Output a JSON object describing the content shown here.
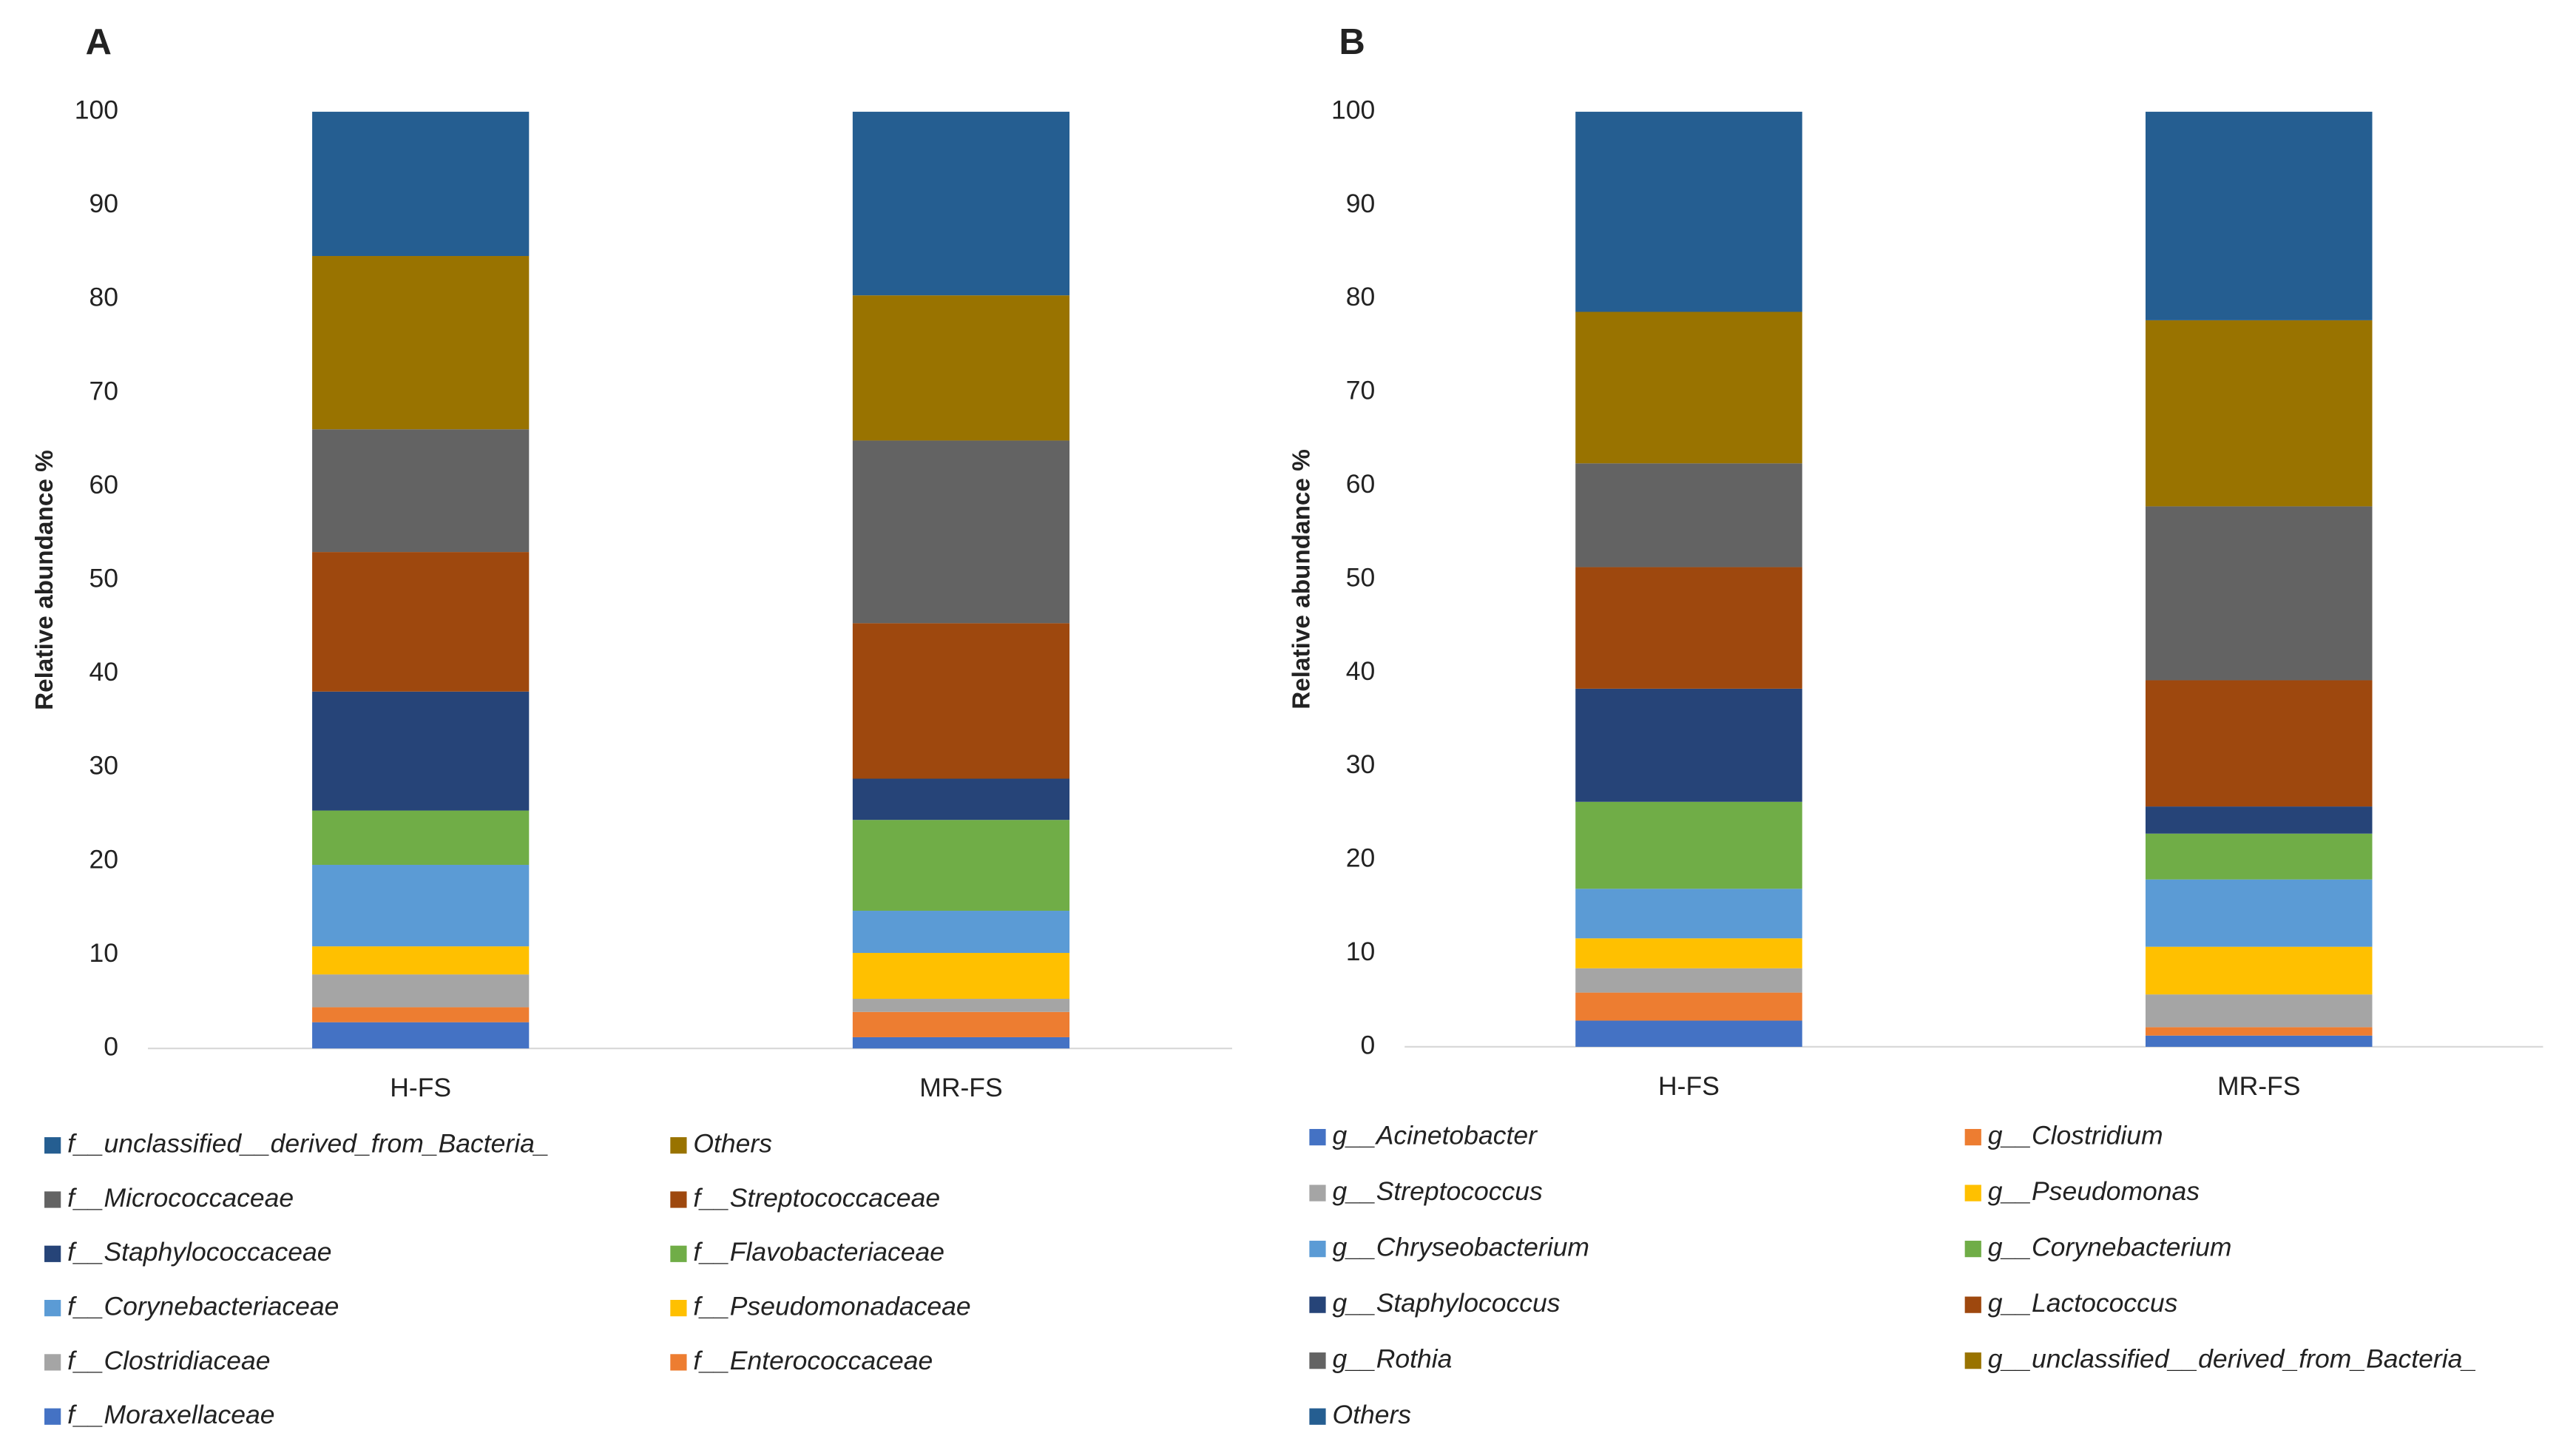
{
  "chart_data": [
    {
      "type": "stacked_bar",
      "title": "A",
      "y_label": "Relative abundance %",
      "categories": [
        "H-FS",
        "MR-FS"
      ],
      "ylim": [
        0,
        100
      ],
      "yticks": [
        0,
        10,
        20,
        30,
        40,
        50,
        60,
        70,
        80,
        90,
        100
      ],
      "legend_reversed": true,
      "series": [
        {
          "name": "f__Moraxellaceae",
          "color": "#4472c4",
          "values": [
            2.8,
            1.2
          ]
        },
        {
          "name": "f__Enterococcaceae",
          "color": "#ed7d31",
          "values": [
            1.6,
            2.7
          ]
        },
        {
          "name": "f__Clostridiaceae",
          "color": "#a5a5a5",
          "values": [
            3.5,
            1.4
          ]
        },
        {
          "name": "f__Pseudomonadaceae",
          "color": "#ffc000",
          "values": [
            3.0,
            4.9
          ]
        },
        {
          "name": "f__Corynebacteriaceae",
          "color": "#5b9bd5",
          "values": [
            8.7,
            4.5
          ]
        },
        {
          "name": "f__Flavobacteriaceae",
          "color": "#70ad47",
          "values": [
            5.8,
            9.7
          ]
        },
        {
          "name": "f__Staphylococcaceae",
          "color": "#264478",
          "values": [
            12.7,
            4.4
          ]
        },
        {
          "name": "f__Streptococcaceae",
          "color": "#9e480e",
          "values": [
            14.9,
            16.6
          ]
        },
        {
          "name": "f__Micrococcaceae",
          "color": "#636363",
          "values": [
            13.1,
            19.5
          ]
        },
        {
          "name": "Others",
          "color": "#997300",
          "values": [
            18.5,
            15.5
          ]
        },
        {
          "name": "f__unclassified__derived_from_Bacteria_",
          "color": "#255e91",
          "values": [
            15.4,
            19.6
          ]
        }
      ]
    },
    {
      "type": "stacked_bar",
      "title": "B",
      "y_label": "Relative abundance %",
      "categories": [
        "H-FS",
        "MR-FS"
      ],
      "ylim": [
        0,
        100
      ],
      "yticks": [
        0,
        10,
        20,
        30,
        40,
        50,
        60,
        70,
        80,
        90,
        100
      ],
      "legend_reversed": false,
      "series": [
        {
          "name": "g__Acinetobacter",
          "color": "#4472c4",
          "values": [
            2.8,
            1.2
          ]
        },
        {
          "name": "g__Clostridium",
          "color": "#ed7d31",
          "values": [
            3.0,
            0.9
          ]
        },
        {
          "name": "g__Streptococcus",
          "color": "#a5a5a5",
          "values": [
            2.6,
            3.5
          ]
        },
        {
          "name": "g__Pseudomonas",
          "color": "#ffc000",
          "values": [
            3.2,
            5.1
          ]
        },
        {
          "name": "g__Chryseobacterium",
          "color": "#5b9bd5",
          "values": [
            5.3,
            7.2
          ]
        },
        {
          "name": "g__Corynebacterium",
          "color": "#70ad47",
          "values": [
            9.3,
            4.9
          ]
        },
        {
          "name": "g__Staphylococcus",
          "color": "#264478",
          "values": [
            12.1,
            2.9
          ]
        },
        {
          "name": "g__Lactococcus",
          "color": "#9e480e",
          "values": [
            13.0,
            13.5
          ]
        },
        {
          "name": "g__Rothia",
          "color": "#636363",
          "values": [
            11.1,
            18.6
          ]
        },
        {
          "name": "g__unclassified__derived_from_Bacteria_",
          "color": "#997300",
          "values": [
            16.2,
            19.9
          ]
        },
        {
          "name": "Others",
          "color": "#255e91",
          "values": [
            21.4,
            22.3
          ]
        }
      ]
    }
  ]
}
